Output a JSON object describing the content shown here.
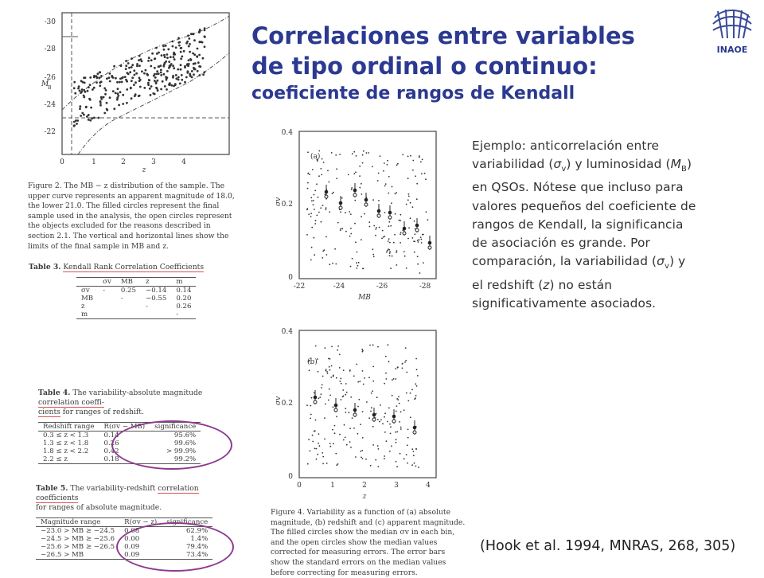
{
  "header": {
    "title_line1": "Correlaciones entre variables",
    "title_line2": "de tipo ordinal o continuo:",
    "title_line3": "coeficiente de rangos de Kendall"
  },
  "logo": {
    "text": "INAOE"
  },
  "body_text": {
    "p1": "Ejemplo: anticorrelación entre",
    "p2a": "variabilidad (",
    "p2b": ") y luminosidad (",
    "p2c": ")",
    "p3": "en QSOs. Nótese que incluso para",
    "p4": "valores pequeños del coeficiente de",
    "p5": "rangos de Kendall, la significancia",
    "p6": "de asociación es grande. Por",
    "p7a": "comparación, la variabilidad (",
    "p7b": ") y",
    "p8a": "el redshift (",
    "p8b": ") no están",
    "p9": "significativamente asociados.",
    "sym_sigma": "σ",
    "sym_v": "v",
    "sym_M": "M",
    "sym_B": "B",
    "sym_z": "z"
  },
  "citation": "(Hook et al. 1994, MNRAS, 268, 305)",
  "figure2": {
    "ylabel": "M",
    "ylabel_sub": "B",
    "xlabel": "z",
    "yticks": [
      "-30",
      "-28",
      "-26",
      "-24",
      "-22"
    ],
    "xticks": [
      "0",
      "1",
      "2",
      "3",
      "4"
    ],
    "caption": "Figure 2. The MB − z distribution of the sample. The upper curve represents an apparent magnitude of 18.0, the lower 21.0. The filled circles represent the final sample used in the analysis, the open circles represent the objects excluded for the reasons described in section 2.1. The vertical and horizontal lines show the limits of the final sample in MB and z."
  },
  "table3": {
    "title_prefix": "Table 3.",
    "title_main": "Kendall Rank Correlation Coefficients",
    "headers": [
      "",
      "σv",
      "MB",
      "z",
      "m"
    ],
    "rows": [
      [
        "σv",
        "-",
        "0.25",
        "−0.14",
        "0.14"
      ],
      [
        "MB",
        "",
        "-",
        "−0.55",
        "0.20"
      ],
      [
        "z",
        "",
        "",
        "-",
        "0.26"
      ],
      [
        "m",
        "",
        "",
        "",
        "-"
      ]
    ]
  },
  "table4": {
    "title_a": "Table 4.",
    "title_b": "The variability-absolute magnitude",
    "title_c": "correlation coeffi-",
    "title_d": "cients",
    "title_e": "for ranges of redshift.",
    "headers": [
      "Redshift range",
      "R(σv − MB)",
      "significance"
    ],
    "rows": [
      [
        "0.3 ≤ z < 1.3",
        "0.14",
        "95.6%"
      ],
      [
        "1.3 ≤ z < 1.8",
        "0.26",
        "99.6%"
      ],
      [
        "1.8 ≤ z < 2.2",
        "0.42",
        "> 99.9%"
      ],
      [
        "2.2 ≤ z",
        "0.18",
        "99.2%"
      ]
    ]
  },
  "table5": {
    "title_a": "Table 5.",
    "title_b": "The variability-redshift",
    "title_c": "correlation coefficients",
    "title_d": "for ranges of absolute magnitude.",
    "headers": [
      "Magnitude range",
      "R(σv − z)",
      "significance"
    ],
    "rows": [
      [
        "−23.0 > MB ≥ −24.5",
        "0.08",
        "62.9%"
      ],
      [
        "−24.5 > MB ≥ −25.6",
        "0.00",
        "1.4%"
      ],
      [
        "−25.6 > MB ≥ −26.5",
        "0.09",
        "79.4%"
      ],
      [
        "−26.5 > MB",
        "0.09",
        "73.4%"
      ]
    ]
  },
  "figure4": {
    "panel_a_label": "(a)",
    "panel_b_label": "(b)",
    "a_ylabel": "σv",
    "a_xlabel": "MB",
    "a_yticks": [
      "0.4",
      "0.2",
      "0"
    ],
    "a_xticks": [
      "-22",
      "-24",
      "-26",
      "-28"
    ],
    "b_ylabel": "σv",
    "b_xlabel": "z",
    "b_yticks": [
      "0.4",
      "0.2",
      "0"
    ],
    "b_xticks": [
      "0",
      "1",
      "2",
      "3",
      "4"
    ],
    "caption": "Figure 4. Variability as a function of (a) absolute magnitude, (b) redshift and (c) apparent magnitude. The filled circles show the median σv in each bin, and the open circles show the median values corrected for measuring errors. The error bars show the standard errors on the median values before correcting for measuring errors."
  }
}
